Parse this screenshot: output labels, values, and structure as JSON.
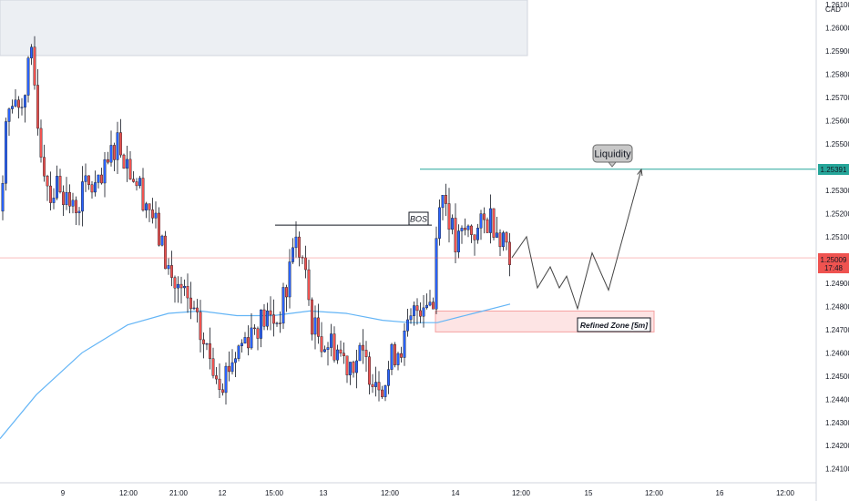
{
  "chart_data": {
    "type": "candlestick",
    "currency_label": "CAD",
    "y_axis": {
      "ticks": [
        1.241,
        1.242,
        1.243,
        1.244,
        1.245,
        1.246,
        1.247,
        1.248,
        1.249,
        1.25,
        1.251,
        1.252,
        1.253,
        1.254,
        1.255,
        1.256,
        1.257,
        1.258,
        1.259,
        1.26,
        1.261
      ],
      "tick_labels": [
        "1.24100",
        "1.24200",
        "1.24300",
        "1.24400",
        "1.24500",
        "1.24600",
        "1.24700",
        "1.24800",
        "1.24900",
        "1.25000",
        "1.25100",
        "1.25200",
        "1.25300",
        "1.25400",
        "1.25500",
        "1.25600",
        "1.25700",
        "1.25800",
        "1.25900",
        "1.26000",
        "1.26100"
      ],
      "range": [
        1.2404,
        1.2612
      ]
    },
    "x_axis": {
      "tick_labels": [
        "9",
        "12:00",
        "21:00",
        "12",
        "15:00",
        "13",
        "12:00",
        "14",
        "12:00",
        "15",
        "12:00",
        "16",
        "12:00"
      ]
    },
    "grid": false,
    "colors": {
      "bull": "#2962ff",
      "bear": "#ef5350",
      "wick": "#131722",
      "moving_average": "#64b5f6",
      "liquidity_line": "#26a69a",
      "price_line": "#ef5350",
      "zone_fill": "#fde4e4",
      "zone_border": "#f5a0a0"
    },
    "last_price": {
      "value": 1.25009,
      "label": "1.25009",
      "countdown": "17:48"
    },
    "liquidity_level": {
      "value": 1.25391,
      "label": "1.25391"
    },
    "bos_level": 1.2515,
    "refined_zone": {
      "top": 1.2478,
      "bottom": 1.2469
    },
    "annotations": {
      "liquidity": "Liquidity",
      "bos": "BOS",
      "refined_zone": "Refined Zone [5m]"
    },
    "anchors": {
      "first": {
        "open": 1.2521,
        "close": 1.2533
      },
      "waypoints": [
        [
          20,
          1.2565
        ],
        [
          35,
          1.2586
        ],
        [
          45,
          1.2548
        ],
        [
          55,
          1.2528
        ],
        [
          65,
          1.2534
        ],
        [
          80,
          1.2521
        ],
        [
          95,
          1.2532
        ],
        [
          110,
          1.253
        ],
        [
          128,
          1.2553
        ],
        [
          145,
          1.2538
        ],
        [
          165,
          1.2522
        ],
        [
          178,
          1.2505
        ],
        [
          190,
          1.249
        ],
        [
          200,
          1.2485
        ],
        [
          210,
          1.2478
        ],
        [
          222,
          1.2465
        ],
        [
          234,
          1.2455
        ],
        [
          244,
          1.2449
        ],
        [
          256,
          1.2458
        ],
        [
          268,
          1.2466
        ],
        [
          280,
          1.2472
        ],
        [
          292,
          1.2475
        ],
        [
          304,
          1.2474
        ],
        [
          314,
          1.2485
        ],
        [
          322,
          1.251
        ],
        [
          332,
          1.25
        ],
        [
          344,
          1.247
        ],
        [
          356,
          1.2465
        ],
        [
          368,
          1.2463
        ],
        [
          380,
          1.2456
        ],
        [
          395,
          1.2458
        ],
        [
          410,
          1.2451
        ],
        [
          422,
          1.2447
        ],
        [
          432,
          1.246
        ],
        [
          444,
          1.2465
        ],
        [
          456,
          1.2478
        ],
        [
          468,
          1.2485
        ],
        [
          476,
          1.248
        ],
        [
          481,
          1.253
        ],
        [
          490,
          1.2525
        ],
        [
          500,
          1.2505
        ],
        [
          512,
          1.2513
        ],
        [
          525,
          1.2512
        ],
        [
          538,
          1.2519
        ],
        [
          548,
          1.2513
        ],
        [
          556,
          1.2508
        ],
        [
          562,
          1.2502
        ]
      ]
    },
    "moving_average": [
      [
        0,
        1.2423
      ],
      [
        40,
        1.2442
      ],
      [
        90,
        1.246
      ],
      [
        140,
        1.2472
      ],
      [
        185,
        1.2477
      ],
      [
        220,
        1.2478
      ],
      [
        260,
        1.2476
      ],
      [
        300,
        1.2476
      ],
      [
        340,
        1.2478
      ],
      [
        380,
        1.2477
      ],
      [
        420,
        1.2474
      ],
      [
        450,
        1.2473
      ],
      [
        480,
        1.2473
      ],
      [
        520,
        1.2477
      ],
      [
        560,
        1.2481
      ]
    ],
    "projected_path": [
      [
        562,
        1.2501
      ],
      [
        578,
        1.251
      ],
      [
        590,
        1.2488
      ],
      [
        604,
        1.2497
      ],
      [
        614,
        1.2488
      ],
      [
        622,
        1.2493
      ],
      [
        634,
        1.2479
      ],
      [
        650,
        1.2503
      ],
      [
        668,
        1.2487
      ],
      [
        704,
        1.2539
      ]
    ]
  }
}
